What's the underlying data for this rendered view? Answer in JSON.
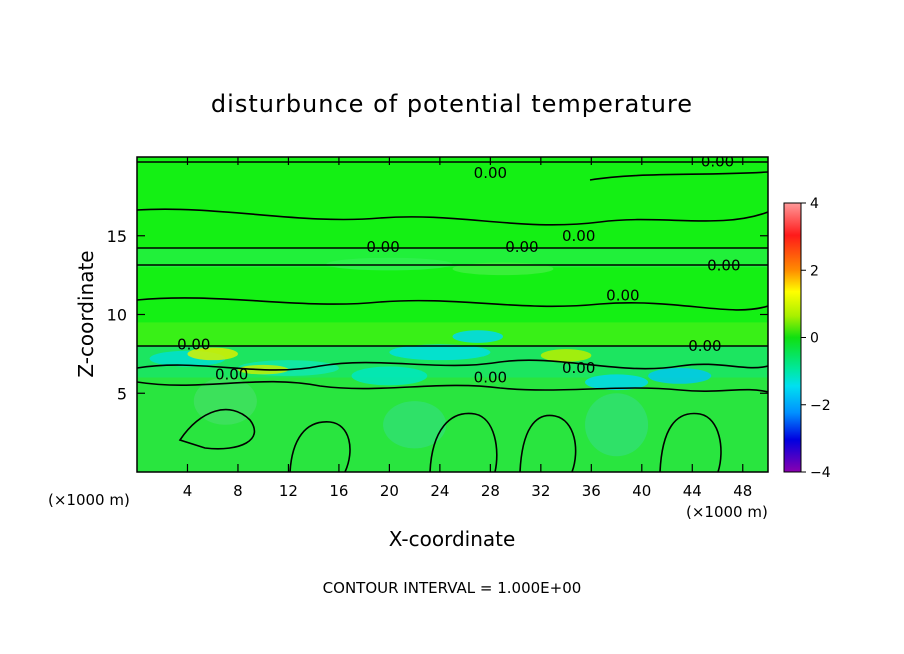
{
  "chart_data": {
    "type": "heatmap",
    "title": "disturbunce of potential temperature",
    "xlabel": "X-coordinate",
    "ylabel": "Z-coordinate",
    "x_unit_left": "(×1000 m)",
    "x_unit_right": "(×1000 m)",
    "xlim": [
      0,
      50
    ],
    "ylim": [
      0,
      20
    ],
    "x_ticks": [
      4,
      8,
      12,
      16,
      20,
      24,
      28,
      32,
      36,
      40,
      44,
      48
    ],
    "y_ticks": [
      5,
      10,
      15
    ],
    "colorbar": {
      "range": [
        -4,
        4
      ],
      "ticks": [
        4,
        2,
        0,
        -2,
        -4
      ]
    },
    "contour_level_label": "0.00",
    "contour_labels": [
      {
        "x": 28.0,
        "y": 19.0
      },
      {
        "x": 46.0,
        "y": 19.7
      },
      {
        "x": 19.5,
        "y": 14.3
      },
      {
        "x": 30.5,
        "y": 14.3
      },
      {
        "x": 35.0,
        "y": 15.0
      },
      {
        "x": 46.5,
        "y": 13.1
      },
      {
        "x": 38.5,
        "y": 11.2
      },
      {
        "x": 4.5,
        "y": 8.1
      },
      {
        "x": 7.5,
        "y": 6.2
      },
      {
        "x": 28.0,
        "y": 6.0
      },
      {
        "x": 35.0,
        "y": 6.6
      },
      {
        "x": 45.0,
        "y": 8.0
      }
    ],
    "footer": "CONTOUR INTERVAL = 1.000E+00"
  }
}
